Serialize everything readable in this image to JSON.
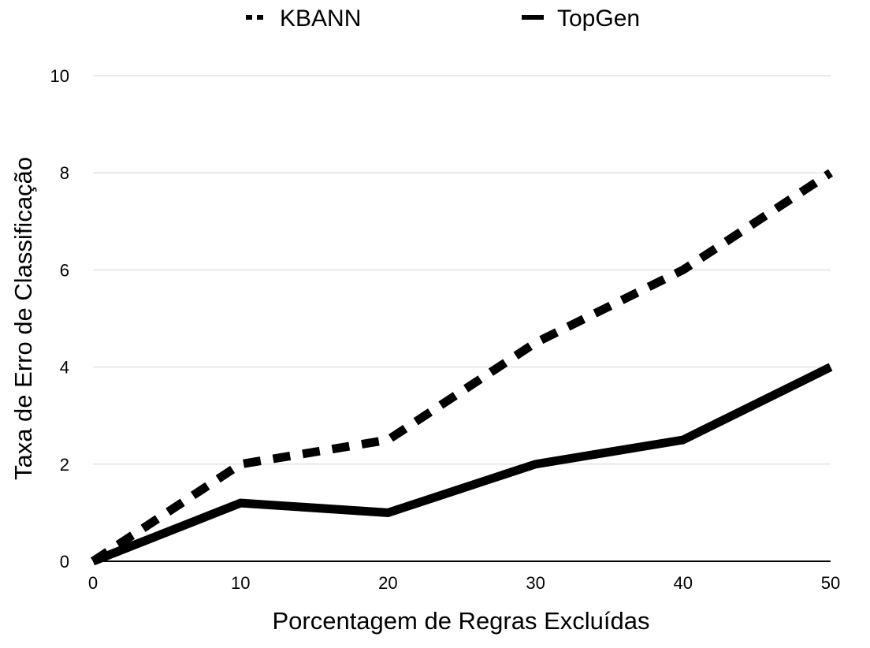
{
  "chart_data": {
    "type": "line",
    "x": [
      0,
      10,
      20,
      30,
      40,
      50
    ],
    "series": [
      {
        "name": "KBANN",
        "values": [
          0,
          2.0,
          2.5,
          4.5,
          6.0,
          8.0
        ],
        "style": "dashed",
        "color": "#000000"
      },
      {
        "name": "TopGen",
        "values": [
          0,
          1.2,
          1.0,
          2.0,
          2.5,
          4.0
        ],
        "style": "solid",
        "color": "#000000"
      }
    ],
    "xlabel": "Porcentagem de Regras Excluídas",
    "ylabel": "Taxa de Erro de Classificação",
    "xlim": [
      0,
      50
    ],
    "ylim": [
      0,
      10
    ],
    "xticks": [
      0,
      10,
      20,
      30,
      40,
      50
    ],
    "yticks": [
      0,
      2,
      4,
      6,
      8,
      10
    ],
    "grid": "horizontal",
    "legend": "top"
  }
}
